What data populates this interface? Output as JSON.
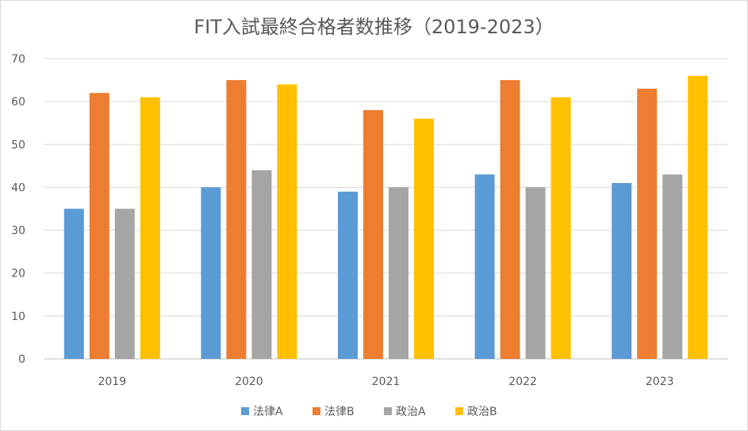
{
  "chart_data": {
    "type": "bar",
    "title": "FIT入試最終合格者数推移（2019-2023）",
    "categories": [
      "2019",
      "2020",
      "2021",
      "2022",
      "2023"
    ],
    "series": [
      {
        "name": "法律A",
        "color": "#5b9bd5",
        "values": [
          35,
          40,
          39,
          43,
          41
        ]
      },
      {
        "name": "法律B",
        "color": "#ed7d31",
        "values": [
          62,
          65,
          58,
          65,
          63
        ]
      },
      {
        "name": "政治A",
        "color": "#a5a5a5",
        "values": [
          35,
          44,
          40,
          40,
          43
        ]
      },
      {
        "name": "政治B",
        "color": "#ffc000",
        "values": [
          61,
          64,
          56,
          61,
          66
        ]
      }
    ],
    "ylim": [
      0,
      70
    ],
    "yticks": [
      0,
      10,
      20,
      30,
      40,
      50,
      60,
      70
    ],
    "grid": true,
    "legend_position": "bottom"
  }
}
